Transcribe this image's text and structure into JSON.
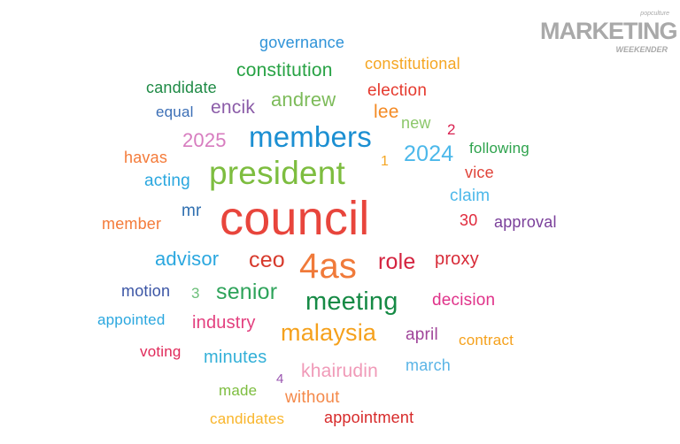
{
  "logo": {
    "text": "MARKETING",
    "tagline": "popculture",
    "subtitle": "WEEKENDER"
  },
  "words": [
    {
      "text": "governance",
      "color": "#2f93d8"
    },
    {
      "text": "constitutional",
      "color": "#f5a623"
    },
    {
      "text": "constitution",
      "color": "#27a244"
    },
    {
      "text": "candidate",
      "color": "#1e8a45"
    },
    {
      "text": "election",
      "color": "#e53a2e"
    },
    {
      "text": "andrew",
      "color": "#7dbb5a"
    },
    {
      "text": "lee",
      "color": "#f48a24"
    },
    {
      "text": "encik",
      "color": "#8b5ca8"
    },
    {
      "text": "equal",
      "color": "#3c6fb6"
    },
    {
      "text": "new",
      "color": "#8cc76a"
    },
    {
      "text": "2",
      "color": "#d9204f"
    },
    {
      "text": "members",
      "color": "#1b8fd2"
    },
    {
      "text": "2025",
      "color": "#d77cbf"
    },
    {
      "text": "following",
      "color": "#2ea34d"
    },
    {
      "text": "2024",
      "color": "#4cb8ea"
    },
    {
      "text": "havas",
      "color": "#f47b3a"
    },
    {
      "text": "1",
      "color": "#f5a623"
    },
    {
      "text": "president",
      "color": "#7dbd3f"
    },
    {
      "text": "vice",
      "color": "#e0443a"
    },
    {
      "text": "acting",
      "color": "#2aa7df"
    },
    {
      "text": "claim",
      "color": "#4cb8ea"
    },
    {
      "text": "council",
      "color": "#e8453c"
    },
    {
      "text": "mr",
      "color": "#2f6fb0"
    },
    {
      "text": "member",
      "color": "#f47b3a"
    },
    {
      "text": "30",
      "color": "#e02a3c"
    },
    {
      "text": "approval",
      "color": "#7a3f9a"
    },
    {
      "text": "advisor",
      "color": "#2aa7df"
    },
    {
      "text": "ceo",
      "color": "#d73a2c"
    },
    {
      "text": "4as",
      "color": "#f07a3a"
    },
    {
      "text": "role",
      "color": "#d4233f"
    },
    {
      "text": "proxy",
      "color": "#d72a37"
    },
    {
      "text": "motion",
      "color": "#3b55a5"
    },
    {
      "text": "3",
      "color": "#6cbf7a"
    },
    {
      "text": "senior",
      "color": "#2ea35a"
    },
    {
      "text": "meeting",
      "color": "#168a45"
    },
    {
      "text": "decision",
      "color": "#e0338a"
    },
    {
      "text": "appointed",
      "color": "#2aa7df"
    },
    {
      "text": "industry",
      "color": "#e3407f"
    },
    {
      "text": "malaysia",
      "color": "#f5a11c"
    },
    {
      "text": "april",
      "color": "#a0459a"
    },
    {
      "text": "contract",
      "color": "#f5a11c"
    },
    {
      "text": "voting",
      "color": "#e02a5a"
    },
    {
      "text": "minutes",
      "color": "#33b0d8"
    },
    {
      "text": "khairudin",
      "color": "#f09ab8"
    },
    {
      "text": "march",
      "color": "#5ab4e6"
    },
    {
      "text": "4",
      "color": "#9a55b0"
    },
    {
      "text": "made",
      "color": "#7dbd3f"
    },
    {
      "text": "without",
      "color": "#f4894a"
    },
    {
      "text": "candidates",
      "color": "#f9b52a"
    },
    {
      "text": "appointment",
      "color": "#d72a2a"
    }
  ]
}
